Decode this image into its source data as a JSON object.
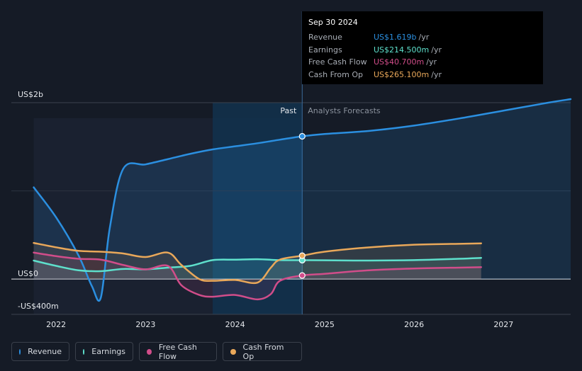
{
  "colors": {
    "revenue": "#2b8fe0",
    "earnings": "#5ee0cc",
    "fcf": "#d14d8a",
    "cfo": "#e9a85a"
  },
  "tooltip": {
    "date": "Sep 30 2024",
    "rows": [
      {
        "label": "Revenue",
        "value": "US$1.619b",
        "unit": "/yr",
        "color": "#2b8fe0"
      },
      {
        "label": "Earnings",
        "value": "US$214.500m",
        "unit": "/yr",
        "color": "#5ee0cc"
      },
      {
        "label": "Free Cash Flow",
        "value": "US$40.700m",
        "unit": "/yr",
        "color": "#d14d8a"
      },
      {
        "label": "Cash From Op",
        "value": "US$265.100m",
        "unit": "/yr",
        "color": "#e9a85a"
      }
    ]
  },
  "legend": [
    {
      "label": "Revenue",
      "color": "#2b8fe0"
    },
    {
      "label": "Earnings",
      "color": "#5ee0cc"
    },
    {
      "label": "Free Cash Flow",
      "color": "#d14d8a"
    },
    {
      "label": "Cash From Op",
      "color": "#e9a85a"
    }
  ],
  "chart_data": {
    "type": "line",
    "y_labels": [
      "US$2b",
      "US$0",
      "-US$400m"
    ],
    "x_tick_labels": [
      "2022",
      "2023",
      "2024",
      "2025",
      "2026",
      "2027"
    ],
    "x_ticks": [
      2022.0,
      2023.0,
      2024.0,
      2025.0,
      2026.0,
      2027.0
    ],
    "xlim": [
      2021.5,
      2027.75
    ],
    "ylim": [
      -400,
      2000
    ],
    "past_label": "Past",
    "forecast_label": "Analysts Forecasts",
    "highlight_range": [
      2023.75,
      2024.75
    ],
    "marker_x": 2024.75,
    "series": [
      {
        "name": "Revenue",
        "key": "revenue",
        "x": [
          2021.75,
          2022.0,
          2022.25,
          2022.4,
          2022.5,
          2022.6,
          2022.75,
          2023.0,
          2023.25,
          2023.5,
          2023.75,
          2024.0,
          2024.25,
          2024.5,
          2024.75,
          2025.0,
          2025.5,
          2026.0,
          2026.5,
          2027.0,
          2027.5,
          2027.75
        ],
        "y": [
          1040,
          700,
          270,
          -80,
          -210,
          580,
          1250,
          1300,
          1360,
          1420,
          1470,
          1505,
          1540,
          1580,
          1619,
          1645,
          1680,
          1740,
          1820,
          1910,
          2000,
          2040
        ]
      },
      {
        "name": "Earnings",
        "key": "earnings",
        "x": [
          2021.75,
          2022.0,
          2022.25,
          2022.5,
          2022.75,
          2023.0,
          2023.25,
          2023.5,
          2023.75,
          2024.0,
          2024.25,
          2024.5,
          2024.75,
          2025.0,
          2025.5,
          2026.0,
          2026.5,
          2026.75
        ],
        "y": [
          210,
          150,
          100,
          90,
          115,
          110,
          130,
          150,
          215,
          220,
          225,
          215,
          214.5,
          213,
          210,
          215,
          230,
          240
        ]
      },
      {
        "name": "Free Cash Flow",
        "key": "fcf",
        "x": [
          2021.75,
          2022.0,
          2022.25,
          2022.5,
          2022.75,
          2023.0,
          2023.25,
          2023.4,
          2023.6,
          2023.75,
          2024.0,
          2024.25,
          2024.4,
          2024.5,
          2024.75,
          2025.0,
          2025.5,
          2026.0,
          2026.5,
          2026.75
        ],
        "y": [
          300,
          260,
          230,
          220,
          160,
          110,
          150,
          -70,
          -180,
          -200,
          -180,
          -230,
          -170,
          -20,
          40.7,
          60,
          100,
          120,
          130,
          135
        ]
      },
      {
        "name": "Cash From Op",
        "key": "cfo",
        "x": [
          2021.75,
          2022.0,
          2022.25,
          2022.5,
          2022.75,
          2023.0,
          2023.25,
          2023.4,
          2023.6,
          2023.75,
          2024.0,
          2024.25,
          2024.4,
          2024.5,
          2024.75,
          2025.0,
          2025.5,
          2026.0,
          2026.5,
          2026.75
        ],
        "y": [
          410,
          360,
          320,
          310,
          290,
          250,
          300,
          160,
          0,
          -20,
          -10,
          -40,
          130,
          220,
          265.1,
          310,
          360,
          390,
          400,
          405
        ]
      }
    ]
  }
}
